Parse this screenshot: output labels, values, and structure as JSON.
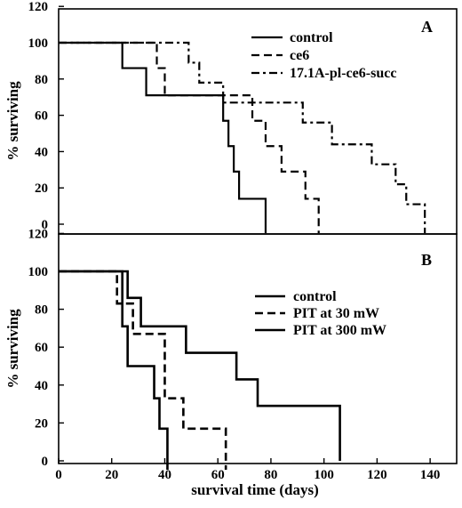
{
  "chart_data": [
    {
      "type": "line",
      "step": true,
      "panel_label": "A",
      "ylabel": "% surviving",
      "xlim": [
        0,
        150
      ],
      "ylim": [
        0,
        120
      ],
      "y_ticks": [
        "0",
        "20",
        "40",
        "60",
        "80",
        "100",
        "120"
      ],
      "legend_position": "top-right",
      "series": [
        {
          "name": "control",
          "style": "solid",
          "x": [
            0,
            24,
            33,
            62,
            64,
            66,
            68,
            78
          ],
          "y": [
            100,
            86,
            71,
            57,
            43,
            29,
            14,
            0
          ]
        },
        {
          "name": "ce6",
          "style": "dashed",
          "x": [
            0,
            37,
            40,
            64,
            73,
            78,
            84,
            93,
            98
          ],
          "y": [
            100,
            86,
            71,
            71,
            57,
            43,
            29,
            14,
            0
          ]
        },
        {
          "name": "17.1A-pl-ce6-succ",
          "style": "dashdot",
          "x": [
            0,
            49,
            53,
            62,
            66,
            92,
            103,
            118,
            127,
            131,
            138
          ],
          "y": [
            100,
            89,
            78,
            67,
            67,
            56,
            44,
            33,
            22,
            11,
            0
          ]
        }
      ]
    },
    {
      "type": "line",
      "step": true,
      "panel_label": "B",
      "xlabel": "survival time (days)",
      "ylabel": "% surviving",
      "xlim": [
        0,
        150
      ],
      "ylim": [
        0,
        120
      ],
      "x_ticks": [
        "0",
        "20",
        "40",
        "60",
        "80",
        "100",
        "120",
        "140"
      ],
      "y_ticks": [
        "0",
        "20",
        "40",
        "60",
        "80",
        "100",
        "120"
      ],
      "legend_position": "right",
      "series": [
        {
          "name": "control",
          "style": "solid",
          "x": [
            0,
            24,
            26,
            36,
            38,
            41
          ],
          "y": [
            100,
            71,
            50,
            33,
            17,
            0
          ]
        },
        {
          "name": "PIT at 30 mW",
          "style": "dashed",
          "x": [
            0,
            22,
            28,
            40,
            47,
            63
          ],
          "y": [
            100,
            83,
            67,
            33,
            17,
            0
          ]
        },
        {
          "name": "PIT at 300 mW",
          "style": "solid",
          "x": [
            0,
            26,
            31,
            48,
            67,
            75,
            106
          ],
          "y": [
            100,
            86,
            71,
            57,
            43,
            29,
            14
          ]
        }
      ]
    }
  ]
}
